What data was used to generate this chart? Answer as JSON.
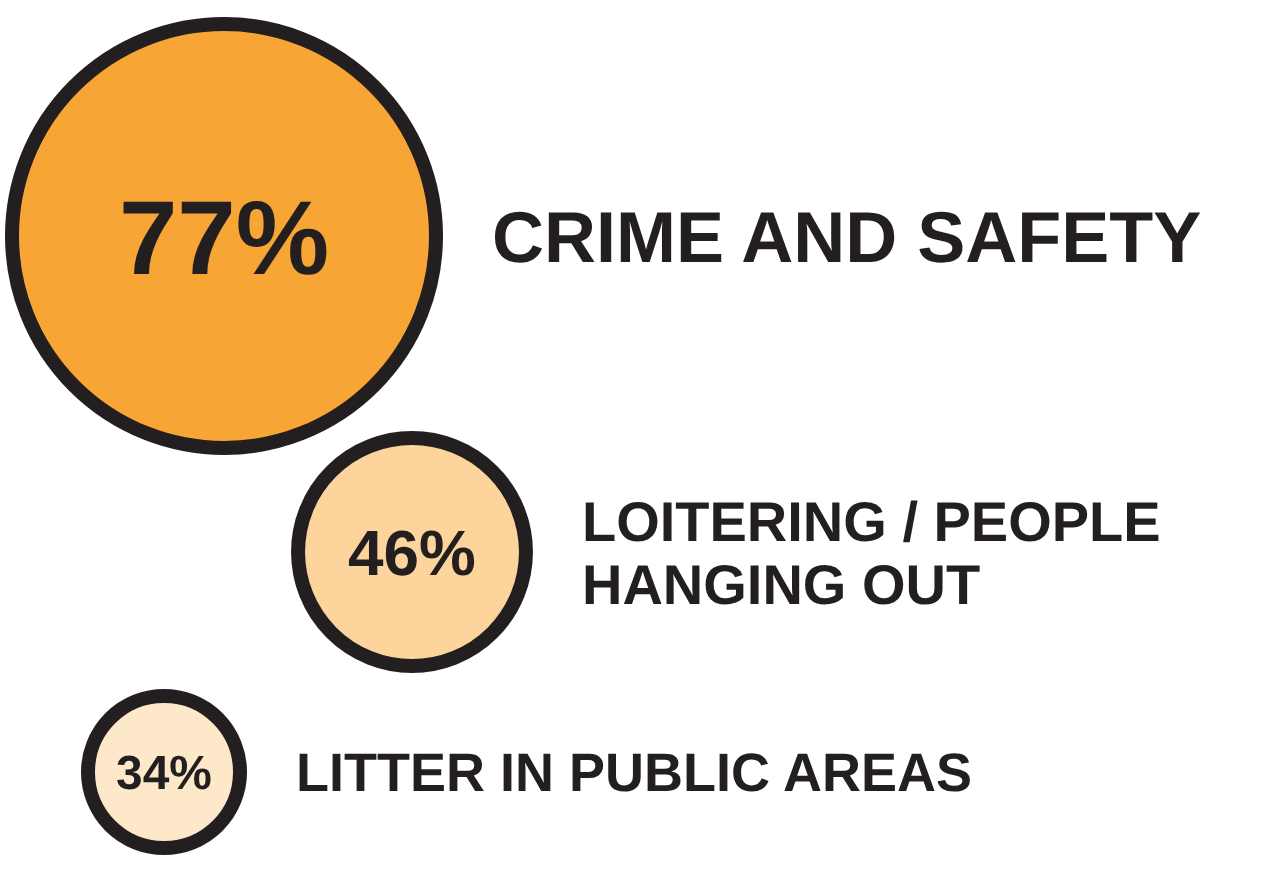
{
  "chart_data": {
    "type": "other",
    "categories": [
      "CRIME AND SAFETY",
      "LOITERING / PEOPLE HANGING OUT",
      "LITTER IN PUBLIC AREAS"
    ],
    "values": [
      77,
      46,
      34
    ],
    "colors": [
      "#f7a535",
      "#fdd59c",
      "#fde8c9"
    ],
    "value_labels": [
      "77%",
      "46%",
      "34%"
    ]
  }
}
